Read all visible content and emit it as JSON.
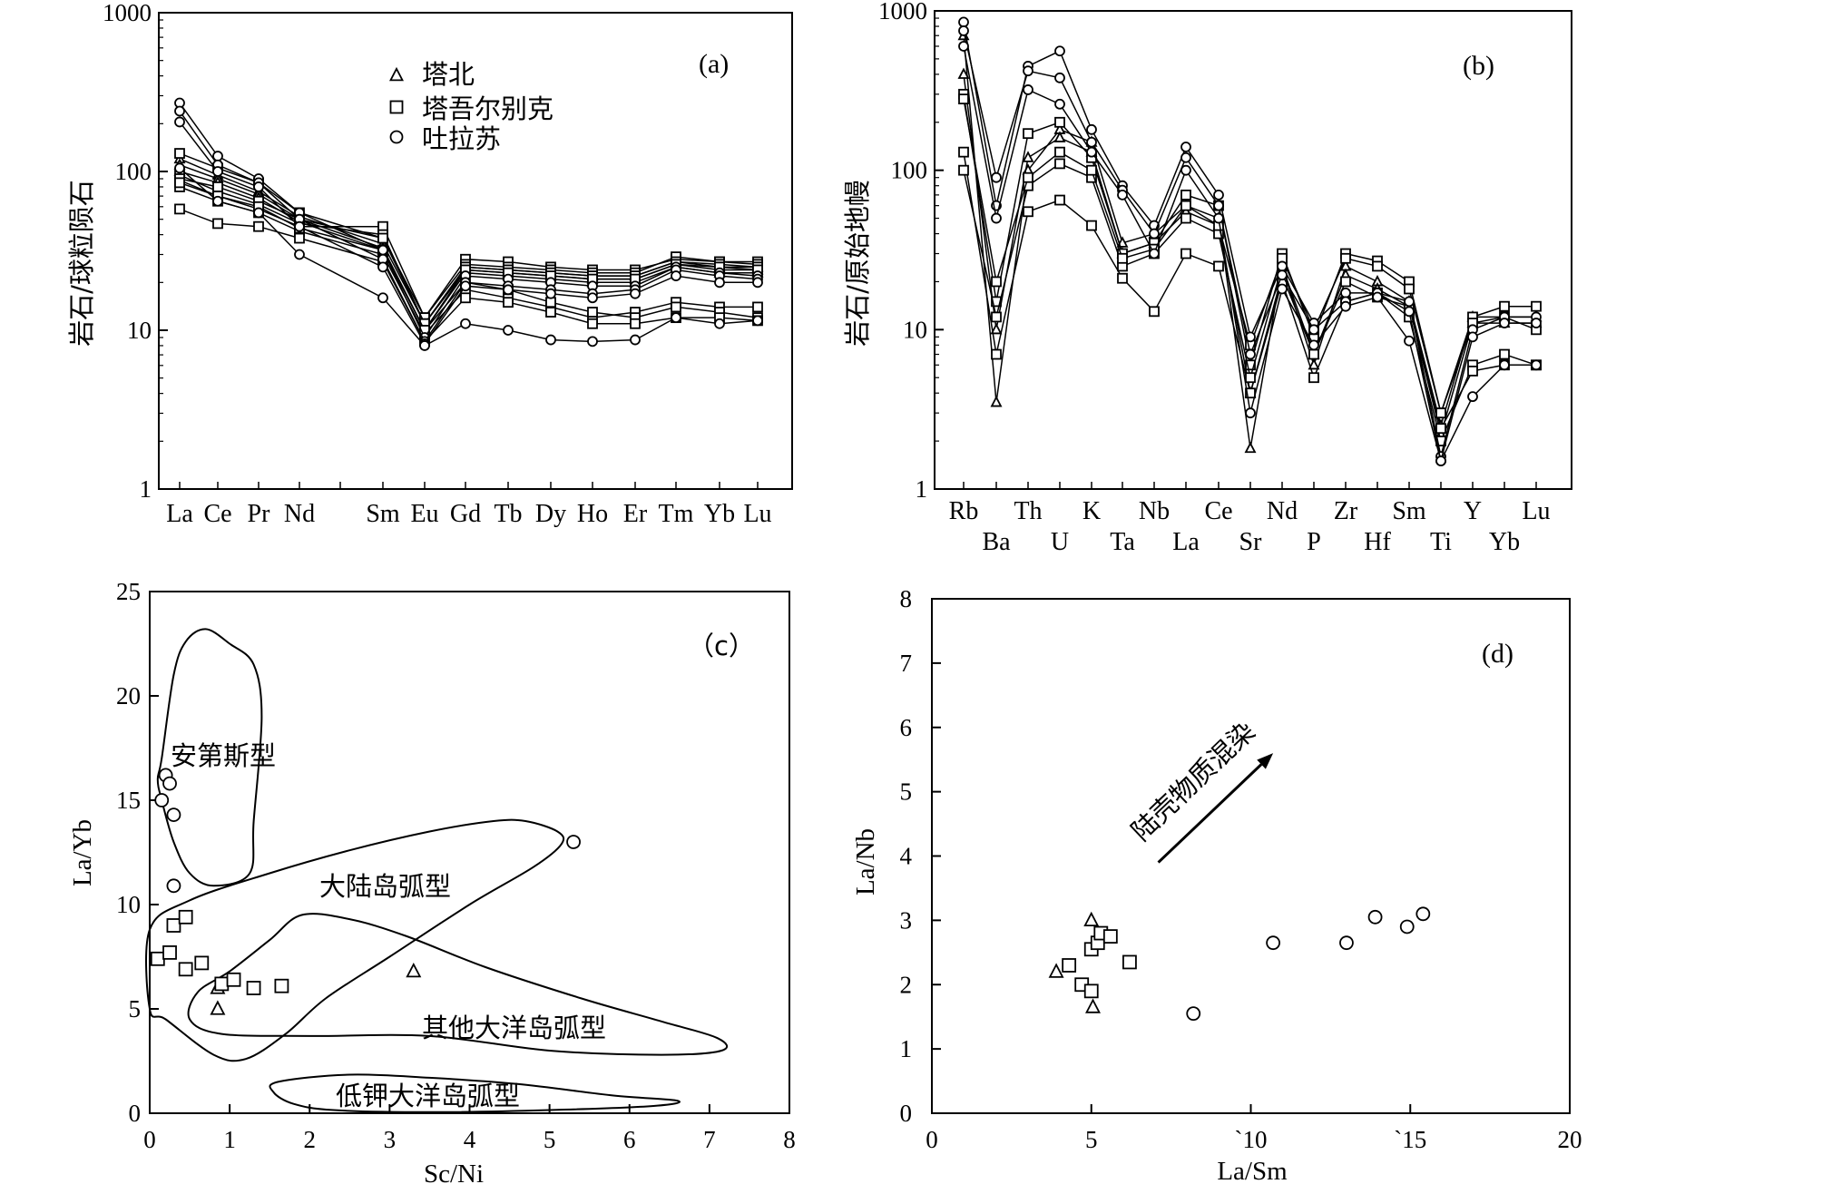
{
  "figure": {
    "colors": {
      "ink": "#000000",
      "background": "#ffffff"
    }
  },
  "chart_data": [
    {
      "id": "a",
      "type": "line",
      "panel_label": "(a)",
      "ylabel": "岩石/球粒陨石",
      "yscale": "log",
      "ylim": [
        1,
        1000
      ],
      "yticks": [
        "1",
        "10",
        "100",
        "1000"
      ],
      "categories": [
        "La",
        "Ce",
        "Pr",
        "Nd",
        "",
        "Sm",
        "Eu",
        "Gd",
        "Tb",
        "Dy",
        "Ho",
        "Er",
        "Tm",
        "Yb",
        "Lu"
      ],
      "legend": [
        {
          "marker": "triangle",
          "label": "塔北"
        },
        {
          "marker": "square",
          "label": "塔吾尔别克"
        },
        {
          "marker": "circle",
          "label": "吐拉苏"
        }
      ],
      "series": [
        {
          "name": "塔北-1",
          "marker": "triangle",
          "values": [
            120,
            95,
            75,
            52,
            null,
            35,
            11,
            25,
            24,
            23,
            22,
            22,
            27,
            25,
            25
          ]
        },
        {
          "name": "塔北-2",
          "marker": "triangle",
          "values": [
            110,
            90,
            72,
            50,
            null,
            33,
            10,
            24,
            23,
            22,
            21,
            21,
            26,
            24,
            24
          ]
        },
        {
          "name": "塔北-3",
          "marker": "triangle",
          "values": [
            100,
            85,
            68,
            48,
            null,
            32,
            10,
            23,
            22,
            21,
            20,
            20,
            25,
            23,
            23
          ]
        },
        {
          "name": "塔吾尔别克-1",
          "marker": "square",
          "values": [
            130,
            105,
            85,
            55,
            null,
            38,
            12,
            28,
            27,
            25,
            24,
            24,
            28,
            27,
            27
          ]
        },
        {
          "name": "塔吾尔别克-2",
          "marker": "square",
          "values": [
            88,
            70,
            58,
            45,
            null,
            45,
            12,
            26,
            25,
            24,
            23,
            23,
            29,
            27,
            26
          ]
        },
        {
          "name": "塔吾尔别克-3",
          "marker": "square",
          "values": [
            95,
            75,
            62,
            47,
            null,
            40,
            11,
            25,
            24,
            23,
            22,
            22,
            27,
            26,
            25
          ]
        },
        {
          "name": "塔吾尔别克-4",
          "marker": "square",
          "values": [
            90,
            80,
            65,
            50,
            null,
            38,
            11,
            24,
            23,
            22,
            21,
            21,
            26,
            25,
            24
          ]
        },
        {
          "name": "塔吾尔别克-5",
          "marker": "square",
          "values": [
            80,
            65,
            55,
            42,
            null,
            30,
            9.5,
            18,
            16,
            14,
            12,
            13,
            15,
            14,
            14
          ]
        },
        {
          "name": "塔吾尔别克-6",
          "marker": "square",
          "values": [
            85,
            70,
            60,
            44,
            null,
            32,
            10,
            20,
            18,
            15,
            13,
            12,
            14,
            13,
            12
          ]
        },
        {
          "name": "塔吾尔别克-7",
          "marker": "square",
          "values": [
            58,
            47,
            45,
            38,
            null,
            27,
            8.5,
            16,
            15,
            13,
            11,
            11,
            12,
            12,
            11.5
          ]
        },
        {
          "name": "吐拉苏-1",
          "marker": "circle",
          "values": [
            270,
            125,
            90,
            55,
            null,
            32,
            9,
            22,
            21,
            20,
            19,
            19,
            25,
            23,
            22
          ]
        },
        {
          "name": "吐拉苏-2",
          "marker": "circle",
          "values": [
            240,
            110,
            85,
            50,
            null,
            28,
            8.5,
            20,
            19,
            18,
            17,
            18,
            24,
            22,
            21
          ]
        },
        {
          "name": "吐拉苏-3",
          "marker": "circle",
          "values": [
            205,
            100,
            80,
            45,
            null,
            25,
            8.2,
            19,
            18,
            17,
            16,
            17,
            22,
            20,
            20
          ]
        },
        {
          "name": "吐拉苏-4",
          "marker": "circle",
          "values": [
            105,
            65,
            55,
            30,
            null,
            16,
            8,
            11,
            10,
            8.7,
            8.5,
            8.7,
            12,
            11,
            11.5
          ]
        }
      ]
    },
    {
      "id": "b",
      "type": "line",
      "panel_label": "(b)",
      "ylabel": "岩石/原始地幔",
      "yscale": "log",
      "ylim": [
        1,
        1000
      ],
      "yticks": [
        "1",
        "10",
        "100",
        "1000"
      ],
      "categories": [
        "Rb",
        "Ba",
        "Th",
        "U",
        "K",
        "Ta",
        "Nb",
        "La",
        "Ce",
        "Sr",
        "Nd",
        "P",
        "Zr",
        "Hf",
        "Sm",
        "Ti",
        "Y",
        "Yb",
        "Lu"
      ],
      "series": [
        {
          "name": "塔北-1",
          "marker": "triangle",
          "values": [
            700,
            3.5,
            100,
            180,
            150,
            35,
            40,
            60,
            50,
            1.8,
            25,
            6,
            25,
            20,
            15,
            2.5,
            12,
            12,
            12
          ]
        },
        {
          "name": "塔北-2",
          "marker": "triangle",
          "values": [
            400,
            10,
            120,
            160,
            130,
            30,
            35,
            55,
            45,
            4,
            22,
            7,
            22,
            18,
            14,
            2.2,
            11,
            11,
            11
          ]
        },
        {
          "name": "塔吾尔别克-1",
          "marker": "square",
          "values": [
            300,
            15,
            170,
            200,
            120,
            30,
            35,
            70,
            60,
            6,
            30,
            9,
            30,
            27,
            20,
            3,
            12,
            14,
            14
          ]
        },
        {
          "name": "塔吾尔别克-2",
          "marker": "square",
          "values": [
            130,
            7,
            55,
            65,
            45,
            21,
            13,
            30,
            25,
            4,
            20,
            5,
            15,
            17,
            12,
            2,
            6,
            7,
            6
          ]
        },
        {
          "name": "塔吾尔别克-3",
          "marker": "square",
          "values": [
            100,
            12,
            80,
            110,
            90,
            25,
            30,
            50,
            40,
            5,
            25,
            7,
            20,
            16,
            14,
            2.4,
            5.5,
            6,
            6
          ]
        },
        {
          "name": "塔吾尔别克-4",
          "marker": "square",
          "values": [
            280,
            20,
            90,
            130,
            100,
            28,
            32,
            60,
            45,
            8,
            28,
            10,
            28,
            25,
            18,
            3,
            11,
            12,
            10
          ]
        },
        {
          "name": "吐拉苏-1",
          "marker": "circle",
          "values": [
            850,
            60,
            450,
            560,
            180,
            80,
            45,
            140,
            70,
            9,
            25,
            11,
            17,
            17,
            15,
            1.6,
            10,
            12,
            12
          ]
        },
        {
          "name": "吐拉苏-2",
          "marker": "circle",
          "values": [
            750,
            90,
            420,
            380,
            150,
            75,
            40,
            120,
            60,
            7,
            22,
            10,
            15,
            17,
            13,
            1.5,
            9,
            11,
            11
          ]
        },
        {
          "name": "吐拉苏-3",
          "marker": "circle",
          "values": [
            600,
            50,
            320,
            260,
            130,
            70,
            30,
            100,
            50,
            3,
            18,
            8,
            14,
            16,
            8.5,
            1.5,
            3.8,
            6,
            6
          ]
        }
      ]
    },
    {
      "id": "c",
      "type": "scatter",
      "panel_label": "（c）",
      "xlabel": "Sc/Ni",
      "ylabel": "La/Yb",
      "xlim": [
        0,
        8
      ],
      "ylim": [
        0,
        25
      ],
      "xticks": [
        "0",
        "1",
        "2",
        "3",
        "4",
        "5",
        "6",
        "7",
        "8"
      ],
      "yticks": [
        "0",
        "5",
        "10",
        "15",
        "20",
        "25"
      ],
      "field_labels": [
        "安第斯型",
        "大陆岛弧型",
        "其他大洋岛弧型",
        "低钾大洋岛弧型"
      ],
      "fields": [
        {
          "name": "安第斯型",
          "points": [
            [
              0.15,
              17
            ],
            [
              0.3,
              21
            ],
            [
              0.45,
              22.6
            ],
            [
              0.7,
              23.2
            ],
            [
              1.0,
              22.5
            ],
            [
              1.3,
              21.5
            ],
            [
              1.4,
              19
            ],
            [
              1.3,
              14
            ],
            [
              1.25,
              11.5
            ],
            [
              0.8,
              10.9
            ],
            [
              0.5,
              11.5
            ],
            [
              0.3,
              13
            ],
            [
              0.15,
              15
            ],
            [
              0.1,
              16
            ]
          ]
        },
        {
          "name": "大陆岛弧型",
          "points": [
            [
              0,
              8.8
            ],
            [
              0.5,
              10.2
            ],
            [
              1.5,
              11.5
            ],
            [
              2.5,
              12.6
            ],
            [
              3.5,
              13.5
            ],
            [
              4.3,
              14
            ],
            [
              4.7,
              14
            ],
            [
              5.1,
              13.5
            ],
            [
              5.15,
              12.9
            ],
            [
              4.8,
              11.8
            ],
            [
              4.0,
              10
            ],
            [
              3.0,
              7.5
            ],
            [
              2.2,
              5.5
            ],
            [
              1.7,
              3.8
            ],
            [
              1.2,
              2.6
            ],
            [
              0.8,
              2.8
            ],
            [
              0.2,
              4.5
            ],
            [
              0,
              5
            ]
          ]
        },
        {
          "name": "其他大洋岛弧型",
          "points": [
            [
              1.9,
              9.5
            ],
            [
              2.5,
              9.3
            ],
            [
              3.2,
              8.5
            ],
            [
              4.2,
              7.0
            ],
            [
              5.4,
              5.5
            ],
            [
              6.4,
              4.4
            ],
            [
              7.1,
              3.6
            ],
            [
              7.15,
              3.0
            ],
            [
              6.4,
              2.8
            ],
            [
              5.0,
              3.0
            ],
            [
              3.5,
              3.7
            ],
            [
              2.0,
              3.7
            ],
            [
              0.9,
              3.8
            ],
            [
              0.5,
              4.5
            ],
            [
              0.6,
              5.8
            ],
            [
              1.0,
              6.8
            ],
            [
              1.5,
              8.3
            ]
          ]
        },
        {
          "name": "低钾大洋岛弧型",
          "points": [
            [
              1.6,
              1.5
            ],
            [
              2.5,
              1.85
            ],
            [
              3.5,
              1.7
            ],
            [
              4.6,
              1.4
            ],
            [
              5.8,
              0.85
            ],
            [
              6.6,
              0.6
            ],
            [
              6.3,
              0.35
            ],
            [
              5.0,
              0.15
            ],
            [
              3.5,
              0.05
            ],
            [
              2.3,
              0.15
            ],
            [
              1.8,
              0.45
            ],
            [
              1.55,
              1.0
            ]
          ]
        }
      ],
      "series": [
        {
          "name": "塔北",
          "marker": "triangle",
          "points": [
            [
              0.85,
              6.0
            ],
            [
              0.85,
              5.0
            ],
            [
              3.3,
              6.8
            ]
          ]
        },
        {
          "name": "塔吾尔别克",
          "marker": "square",
          "points": [
            [
              0.1,
              7.4
            ],
            [
              0.25,
              7.7
            ],
            [
              0.3,
              9.0
            ],
            [
              0.45,
              9.4
            ],
            [
              0.45,
              6.9
            ],
            [
              0.65,
              7.2
            ],
            [
              0.9,
              6.2
            ],
            [
              1.05,
              6.4
            ],
            [
              1.3,
              6.0
            ],
            [
              1.65,
              6.1
            ]
          ]
        },
        {
          "name": "吐拉苏",
          "marker": "circle",
          "points": [
            [
              0.15,
              15.0
            ],
            [
              0.2,
              16.2
            ],
            [
              0.25,
              15.8
            ],
            [
              0.3,
              14.3
            ],
            [
              0.3,
              10.9
            ],
            [
              5.3,
              13.0
            ]
          ]
        }
      ]
    },
    {
      "id": "d",
      "type": "scatter",
      "panel_label": "(d)",
      "xlabel": "La/Sm",
      "ylabel": "La/Nb",
      "xlim": [
        0,
        20
      ],
      "ylim": [
        0,
        8
      ],
      "xticks": [
        "0",
        "5",
        "`10",
        "`15",
        "20"
      ],
      "yticks": [
        "0",
        "1",
        "2",
        "3",
        "4",
        "5",
        "6",
        "7",
        "8"
      ],
      "annotation": "陆壳物质混染",
      "arrow": {
        "from": [
          7.1,
          3.9
        ],
        "to": [
          10.7,
          5.6
        ]
      },
      "series": [
        {
          "name": "塔北",
          "marker": "triangle",
          "points": [
            [
              3.9,
              2.2
            ],
            [
              5.0,
              3.0
            ],
            [
              5.05,
              1.65
            ]
          ]
        },
        {
          "name": "塔吾尔别克",
          "marker": "square",
          "points": [
            [
              4.3,
              2.3
            ],
            [
              4.7,
              2.0
            ],
            [
              5.0,
              1.9
            ],
            [
              5.0,
              2.55
            ],
            [
              5.2,
              2.65
            ],
            [
              5.3,
              2.8
            ],
            [
              5.6,
              2.75
            ],
            [
              6.2,
              2.35
            ]
          ]
        },
        {
          "name": "吐拉苏",
          "marker": "circle",
          "points": [
            [
              8.2,
              1.55
            ],
            [
              10.7,
              2.65
            ],
            [
              13.0,
              2.65
            ],
            [
              13.9,
              3.05
            ],
            [
              14.9,
              2.9
            ],
            [
              15.4,
              3.1
            ]
          ]
        }
      ]
    }
  ]
}
